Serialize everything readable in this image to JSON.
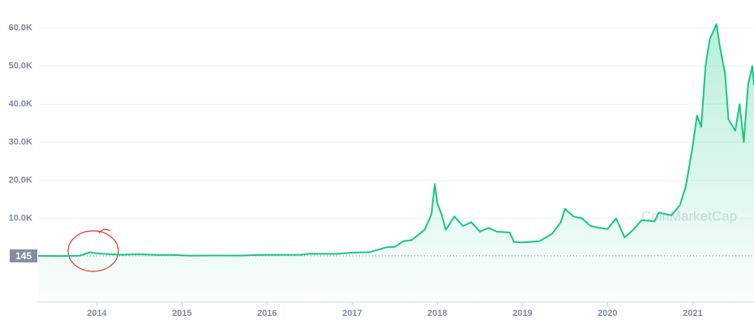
{
  "chart_data": {
    "type": "line",
    "x": [
      2013.31,
      2013.6,
      2013.8,
      2013.92,
      2014.0,
      2014.1,
      2014.3,
      2014.5,
      2014.7,
      2014.9,
      2015.0,
      2015.1,
      2015.4,
      2015.7,
      2015.9,
      2016.0,
      2016.4,
      2016.5,
      2016.8,
      2017.0,
      2017.2,
      2017.4,
      2017.5,
      2017.6,
      2017.7,
      2017.85,
      2017.93,
      2017.97,
      2018.0,
      2018.05,
      2018.1,
      2018.2,
      2018.3,
      2018.4,
      2018.5,
      2018.6,
      2018.7,
      2018.85,
      2018.9,
      2019.0,
      2019.2,
      2019.35,
      2019.45,
      2019.5,
      2019.6,
      2019.7,
      2019.8,
      2019.9,
      2020.0,
      2020.1,
      2020.2,
      2020.3,
      2020.4,
      2020.55,
      2020.6,
      2020.75,
      2020.85,
      2020.92,
      2021.0,
      2021.05,
      2021.1,
      2021.15,
      2021.2,
      2021.28,
      2021.32,
      2021.38,
      2021.42,
      2021.5,
      2021.55,
      2021.6,
      2021.65,
      2021.7,
      2021.72
    ],
    "values": [
      140,
      100,
      200,
      1100,
      800,
      650,
      450,
      620,
      400,
      370,
      300,
      220,
      240,
      230,
      400,
      430,
      450,
      700,
      650,
      1000,
      1100,
      2400,
      2500,
      4000,
      4300,
      7000,
      11000,
      19000,
      14000,
      11000,
      7000,
      10500,
      8000,
      9000,
      6500,
      7500,
      6500,
      6300,
      3800,
      3700,
      4000,
      6000,
      9000,
      12500,
      10500,
      10000,
      8000,
      7500,
      7200,
      10000,
      5000,
      7000,
      9500,
      9200,
      11500,
      10800,
      13500,
      18500,
      29000,
      37000,
      34000,
      50000,
      57000,
      61000,
      55000,
      48000,
      36000,
      33000,
      40000,
      30000,
      45000,
      50000,
      45000
    ],
    "color": "#16c784",
    "xlim": [
      2013.31,
      2021.72
    ],
    "xticks": [
      2014,
      2015,
      2016,
      2017,
      2018,
      2019,
      2020,
      2021
    ],
    "ylim": [
      -12000,
      65000
    ],
    "yticks": [
      {
        "value": 10000,
        "label": "10.0K"
      },
      {
        "value": 20000,
        "label": "20.0K"
      },
      {
        "value": 30000,
        "label": "30.0K"
      },
      {
        "value": 40000,
        "label": "40.0K"
      },
      {
        "value": 50000,
        "label": "50.0K"
      },
      {
        "value": 60000,
        "label": "60.0K"
      }
    ],
    "grid": true,
    "baseline": {
      "value": 145,
      "label": "145"
    },
    "watermark": "CoinMarketCap"
  }
}
